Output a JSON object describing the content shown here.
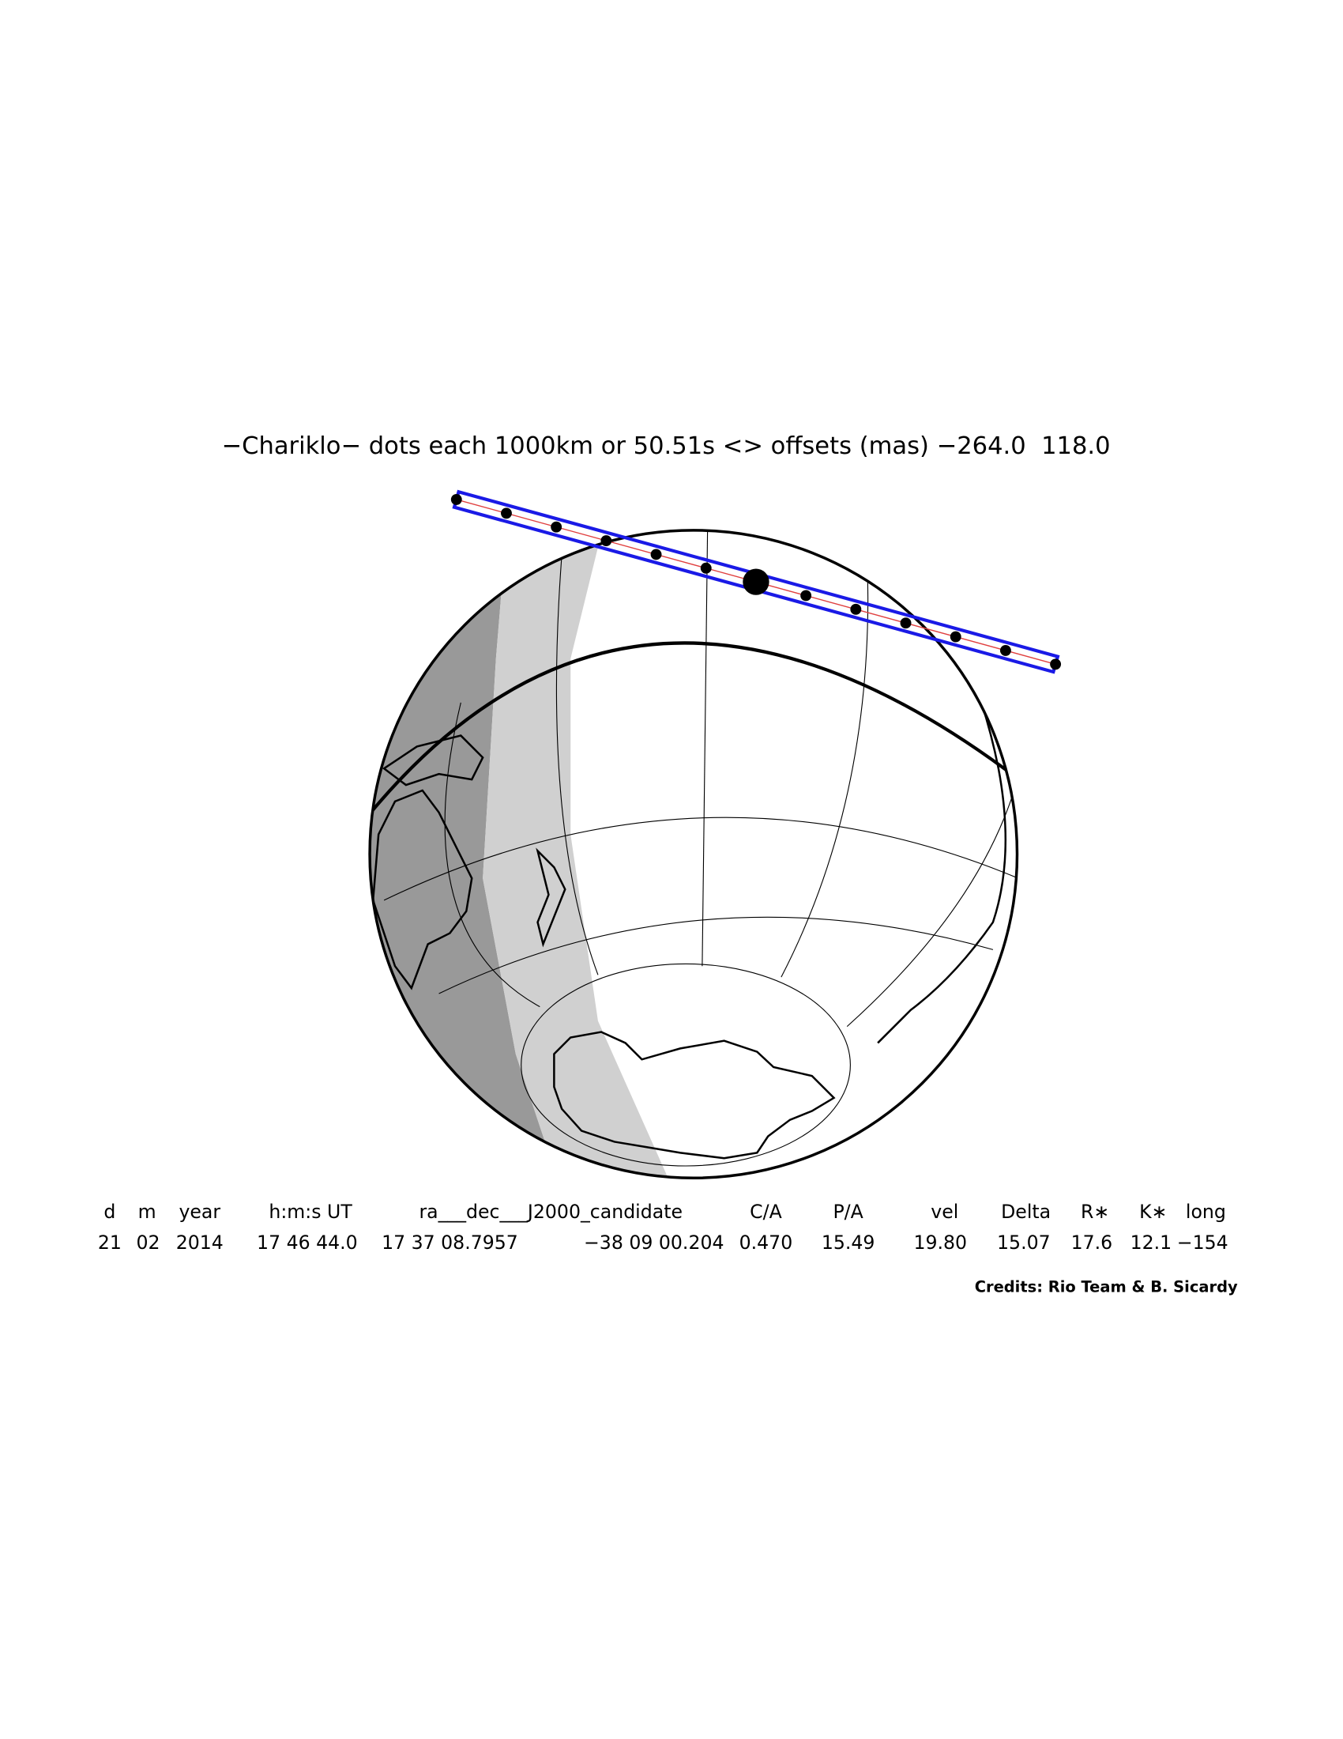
{
  "title": "−Chariklo− dots each 1000km or 50.51s <> offsets (mas) −264.0  118.0",
  "table": {
    "header": [
      "d",
      "m",
      "year",
      "h:m:s UT",
      "ra___dec___J2000_candidate",
      "C/A",
      "P/A",
      "vel",
      "Delta",
      "R∗",
      "K∗",
      "long"
    ],
    "rows": [
      [
        "21",
        "02",
        "2014",
        "17 46 44.0",
        "17 37 08.7957",
        "−38 09 00.204",
        "0.470",
        "15.49",
        "19.80",
        "15.07",
        "17.6",
        "12.1",
        "−154"
      ]
    ]
  },
  "credits": "Credits: Rio Team & B. Sicardy"
}
